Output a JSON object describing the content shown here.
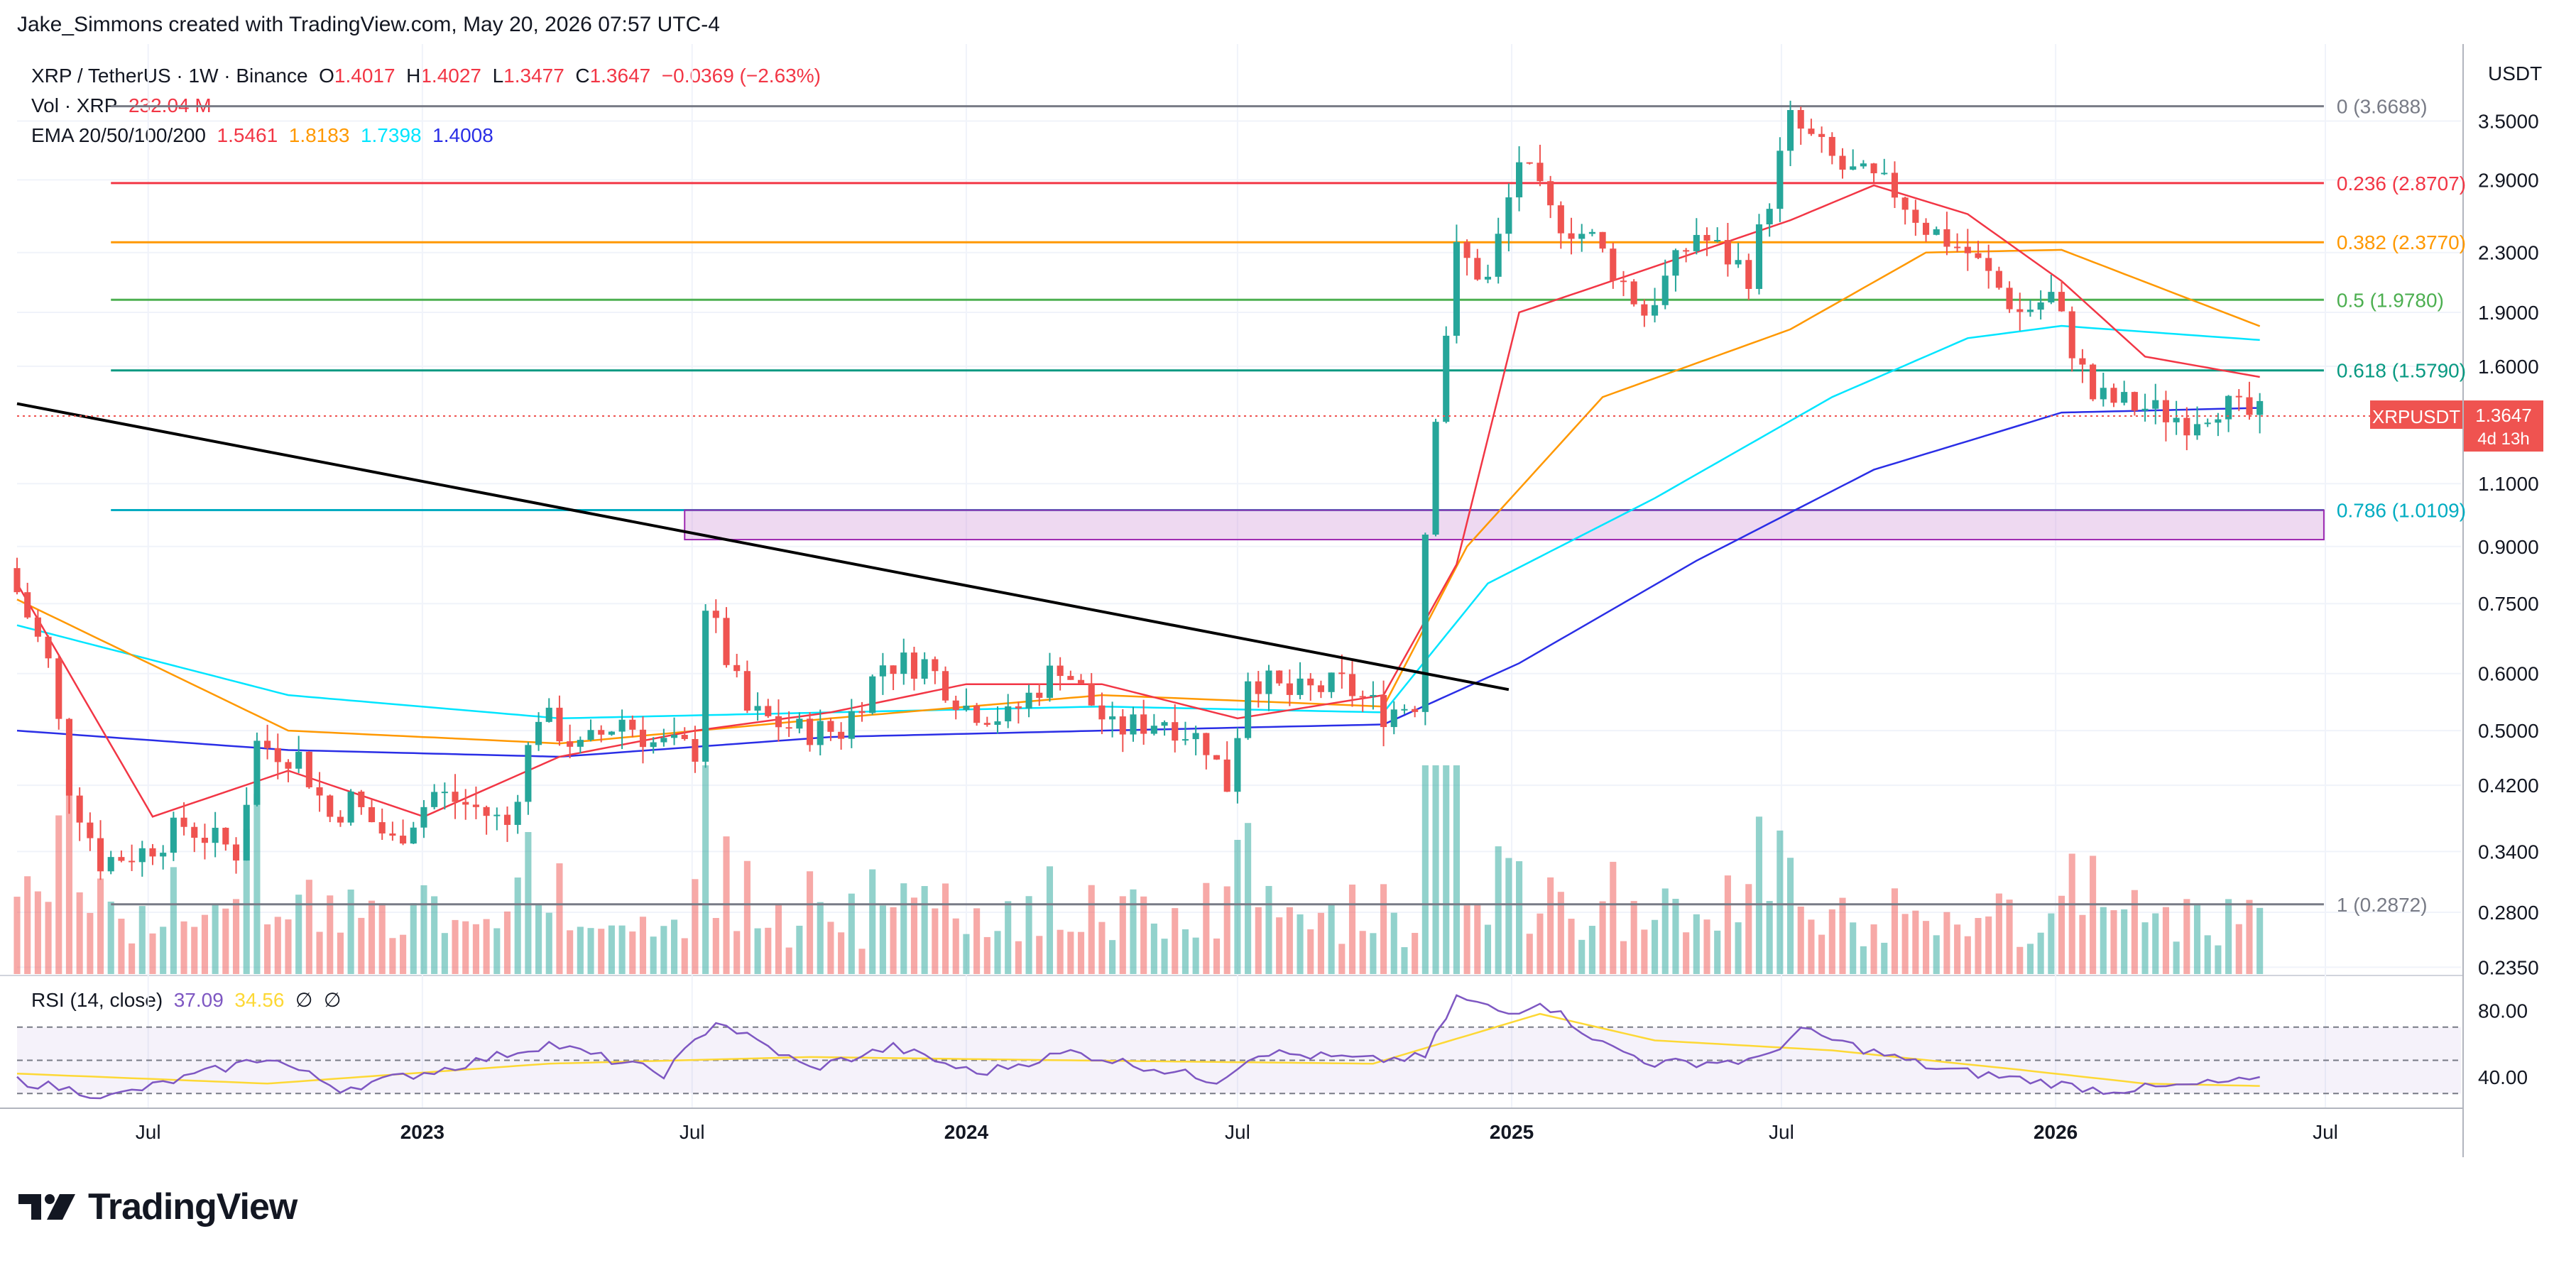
{
  "header": {
    "credit": "Jake_Simmons created with TradingView.com, May 20, 2026 07:57 UTC-4"
  },
  "legend": {
    "symbol": "XRP / TetherUS · 1W · Binance",
    "o_label": "O",
    "o_value": "1.4017",
    "h_label": "H",
    "h_value": "1.4027",
    "l_label": "L",
    "l_value": "1.3477",
    "c_label": "C",
    "c_value": "1.3647",
    "change": "−0.0369 (−2.63%)",
    "vol_label": "Vol · XRP",
    "vol_value": "232.04 M",
    "ema_label": "EMA 20/50/100/200",
    "ema20": "1.5461",
    "ema50": "1.8183",
    "ema100": "1.7398",
    "ema200": "1.4008"
  },
  "rsi_legend": {
    "label": "RSI (14, close)",
    "rsi": "37.09",
    "ma": "34.56",
    "icon1": "∅",
    "icon2": "∅"
  },
  "axis": {
    "currency": "USDT"
  },
  "price_tag": {
    "symbol": "XRPUSDT",
    "price": "1.3647",
    "countdown": "4d 13h"
  },
  "brand": {
    "name": "TradingView"
  },
  "colors": {
    "up": "#26a69a",
    "down": "#ef5350",
    "ema20": "#f23645",
    "ema50": "#ff9800",
    "ema100": "#00e5ff",
    "ema200": "#2a2ee6",
    "fib0": "#787b86",
    "fib236": "#f23645",
    "fib382": "#ff9800",
    "fib5": "#4caf50",
    "fib618": "#089981",
    "fib786": "#00acc1",
    "fib1": "#787b86",
    "rsi": "#7e57c2",
    "rsi_ma": "#fdd835",
    "zone": "#ce93d8"
  },
  "chart_data": {
    "type": "candlestick",
    "title": "XRP / TetherUS · 1W · Binance",
    "y_scale": "log",
    "y_ticks": [
      "3.5000",
      "2.9000",
      "2.3000",
      "1.9000",
      "1.6000",
      "1.3647",
      "1.1000",
      "0.9000",
      "0.7500",
      "0.6000",
      "0.5000",
      "0.4200",
      "0.3400",
      "0.2800",
      "0.2350"
    ],
    "x_ticks": [
      "Jul",
      "2023",
      "Jul",
      "2024",
      "Jul",
      "2025",
      "Jul",
      "2026",
      "Jul"
    ],
    "x_range": [
      "2022-04-04",
      "2026-09-30"
    ],
    "y_range": [
      0.232,
      3.75
    ],
    "fib_levels": [
      {
        "label": "0 (3.6688)",
        "value": 3.6688,
        "color_key": "fib0"
      },
      {
        "label": "0.236 (2.8707)",
        "value": 2.8707,
        "color_key": "fib236"
      },
      {
        "label": "0.382 (2.3770)",
        "value": 2.377,
        "color_key": "fib382"
      },
      {
        "label": "0.5 (1.9780)",
        "value": 1.978,
        "color_key": "fib5"
      },
      {
        "label": "0.618 (1.5790)",
        "value": 1.579,
        "color_key": "fib618"
      },
      {
        "label": "0.786 (1.0109)",
        "value": 1.0109,
        "color_key": "fib786"
      },
      {
        "label": "1 (0.2872)",
        "value": 0.2872,
        "color_key": "fib1"
      }
    ],
    "zone": {
      "from": "2023-06-26",
      "to": "2026-06-30",
      "low": 0.92,
      "high": 1.0109
    },
    "trendline": {
      "from": [
        "2022-04-04",
        1.42
      ],
      "to": [
        "2024-12-30",
        0.57
      ]
    },
    "price_path": [
      [
        "2022-04-04",
        0.84
      ],
      [
        "2022-05-02",
        0.62
      ],
      [
        "2022-05-16",
        0.42
      ],
      [
        "2022-06-06",
        0.33
      ],
      [
        "2022-07-04",
        0.34
      ],
      [
        "2022-08-01",
        0.37
      ],
      [
        "2022-09-05",
        0.34
      ],
      [
        "2022-09-19",
        0.48
      ],
      [
        "2022-10-17",
        0.46
      ],
      [
        "2022-11-07",
        0.38
      ],
      [
        "2022-11-21",
        0.4
      ],
      [
        "2022-12-19",
        0.35
      ],
      [
        "2023-01-16",
        0.41
      ],
      [
        "2023-02-13",
        0.39
      ],
      [
        "2023-03-06",
        0.37
      ],
      [
        "2023-03-27",
        0.53
      ],
      [
        "2023-04-24",
        0.47
      ],
      [
        "2023-05-22",
        0.52
      ],
      [
        "2023-06-12",
        0.48
      ],
      [
        "2023-07-10",
        0.47
      ],
      [
        "2023-07-17",
        0.75
      ],
      [
        "2023-08-14",
        0.53
      ],
      [
        "2023-09-18",
        0.5
      ],
      [
        "2023-10-16",
        0.5
      ],
      [
        "2023-11-13",
        0.62
      ],
      [
        "2023-12-11",
        0.62
      ],
      [
        "2024-01-08",
        0.54
      ],
      [
        "2024-02-05",
        0.52
      ],
      [
        "2024-03-11",
        0.62
      ],
      [
        "2024-04-15",
        0.5
      ],
      [
        "2024-05-20",
        0.52
      ],
      [
        "2024-06-17",
        0.48
      ],
      [
        "2024-07-01",
        0.42
      ],
      [
        "2024-07-15",
        0.6
      ],
      [
        "2024-08-12",
        0.56
      ],
      [
        "2024-09-16",
        0.58
      ],
      [
        "2024-10-14",
        0.53
      ],
      [
        "2024-11-04",
        0.55
      ],
      [
        "2024-11-11",
        0.95
      ],
      [
        "2024-11-18",
        1.4
      ],
      [
        "2024-12-02",
        2.3
      ],
      [
        "2024-12-23",
        2.1
      ],
      [
        "2025-01-13",
        3.1
      ],
      [
        "2025-02-03",
        2.6
      ],
      [
        "2025-03-03",
        2.4
      ],
      [
        "2025-04-07",
        1.9
      ],
      [
        "2025-05-12",
        2.45
      ],
      [
        "2025-06-16",
        2.15
      ],
      [
        "2025-07-14",
        3.5
      ],
      [
        "2025-08-18",
        3.0
      ],
      [
        "2025-09-22",
        2.8
      ],
      [
        "2025-10-13",
        2.5
      ],
      [
        "2025-11-10",
        2.3
      ],
      [
        "2025-12-15",
        1.9
      ],
      [
        "2026-01-05",
        2.0
      ],
      [
        "2026-02-02",
        1.45
      ],
      [
        "2026-03-09",
        1.4
      ],
      [
        "2026-04-06",
        1.35
      ],
      [
        "2026-04-27",
        1.42
      ],
      [
        "2026-05-18",
        1.3647
      ]
    ],
    "ema_series": {
      "ema20": [
        [
          "2022-04-04",
          0.8
        ],
        [
          "2022-07-04",
          0.38
        ],
        [
          "2022-10-03",
          0.44
        ],
        [
          "2023-01-02",
          0.38
        ],
        [
          "2023-04-03",
          0.46
        ],
        [
          "2023-07-03",
          0.5
        ],
        [
          "2023-10-02",
          0.53
        ],
        [
          "2024-01-01",
          0.58
        ],
        [
          "2024-04-01",
          0.58
        ],
        [
          "2024-07-01",
          0.52
        ],
        [
          "2024-10-07",
          0.56
        ],
        [
          "2024-11-25",
          0.85
        ],
        [
          "2025-01-06",
          1.9
        ],
        [
          "2025-04-07",
          2.2
        ],
        [
          "2025-07-07",
          2.55
        ],
        [
          "2025-09-01",
          2.85
        ],
        [
          "2025-11-03",
          2.6
        ],
        [
          "2026-01-05",
          2.1
        ],
        [
          "2026-03-02",
          1.65
        ],
        [
          "2026-05-18",
          1.5461
        ]
      ],
      "ema50": [
        [
          "2022-04-04",
          0.76
        ],
        [
          "2022-10-03",
          0.5
        ],
        [
          "2023-04-03",
          0.48
        ],
        [
          "2023-10-02",
          0.52
        ],
        [
          "2024-04-01",
          0.56
        ],
        [
          "2024-10-07",
          0.54
        ],
        [
          "2024-12-02",
          0.9
        ],
        [
          "2025-03-03",
          1.45
        ],
        [
          "2025-07-07",
          1.8
        ],
        [
          "2025-10-06",
          2.3
        ],
        [
          "2026-01-05",
          2.32
        ],
        [
          "2026-05-18",
          1.8183
        ]
      ],
      "ema100": [
        [
          "2022-04-04",
          0.7
        ],
        [
          "2022-10-03",
          0.56
        ],
        [
          "2023-04-03",
          0.52
        ],
        [
          "2023-10-02",
          0.53
        ],
        [
          "2024-04-01",
          0.54
        ],
        [
          "2024-10-07",
          0.53
        ],
        [
          "2024-12-16",
          0.8
        ],
        [
          "2025-04-07",
          1.05
        ],
        [
          "2025-08-04",
          1.45
        ],
        [
          "2025-11-03",
          1.75
        ],
        [
          "2026-01-05",
          1.82
        ],
        [
          "2026-05-18",
          1.7398
        ]
      ],
      "ema200": [
        [
          "2022-04-04",
          0.5
        ],
        [
          "2022-10-03",
          0.47
        ],
        [
          "2023-04-03",
          0.46
        ],
        [
          "2023-10-02",
          0.49
        ],
        [
          "2024-04-01",
          0.5
        ],
        [
          "2024-10-07",
          0.51
        ],
        [
          "2025-01-06",
          0.62
        ],
        [
          "2025-05-05",
          0.86
        ],
        [
          "2025-09-01",
          1.15
        ],
        [
          "2026-01-05",
          1.38
        ],
        [
          "2026-05-18",
          1.4008
        ]
      ]
    },
    "rsi": {
      "ylim": [
        25,
        90
      ],
      "levels": [
        70,
        50,
        30
      ],
      "tick_labels": [
        "80.00",
        "40.00"
      ],
      "values": [
        [
          "2022-04-04",
          38
        ],
        [
          "2022-06-06",
          28
        ],
        [
          "2022-09-19",
          52
        ],
        [
          "2022-11-07",
          33
        ],
        [
          "2023-01-16",
          45
        ],
        [
          "2023-03-27",
          60
        ],
        [
          "2023-06-12",
          42
        ],
        [
          "2023-07-17",
          74
        ],
        [
          "2023-09-18",
          45
        ],
        [
          "2023-11-13",
          58
        ],
        [
          "2024-01-08",
          42
        ],
        [
          "2024-03-11",
          55
        ],
        [
          "2024-06-17",
          38
        ],
        [
          "2024-07-15",
          55
        ],
        [
          "2024-09-30",
          50
        ],
        [
          "2024-11-04",
          52
        ],
        [
          "2024-11-25",
          88
        ],
        [
          "2024-12-30",
          78
        ],
        [
          "2025-01-20",
          86
        ],
        [
          "2025-03-03",
          60
        ],
        [
          "2025-04-07",
          48
        ],
        [
          "2025-06-16",
          50
        ],
        [
          "2025-07-14",
          68
        ],
        [
          "2025-09-01",
          55
        ],
        [
          "2025-10-13",
          45
        ],
        [
          "2025-12-15",
          38
        ],
        [
          "2026-02-02",
          32
        ],
        [
          "2026-03-23",
          34
        ],
        [
          "2026-04-27",
          37
        ],
        [
          "2026-05-18",
          37.09
        ]
      ],
      "ma_values": [
        [
          "2022-04-04",
          42
        ],
        [
          "2022-09-19",
          36
        ],
        [
          "2023-03-27",
          48
        ],
        [
          "2023-09-18",
          52
        ],
        [
          "2024-03-11",
          50
        ],
        [
          "2024-09-30",
          48
        ],
        [
          "2025-01-20",
          78
        ],
        [
          "2025-04-07",
          62
        ],
        [
          "2025-08-04",
          56
        ],
        [
          "2025-12-01",
          45
        ],
        [
          "2026-03-02",
          36
        ],
        [
          "2026-05-18",
          34.56
        ]
      ]
    }
  }
}
